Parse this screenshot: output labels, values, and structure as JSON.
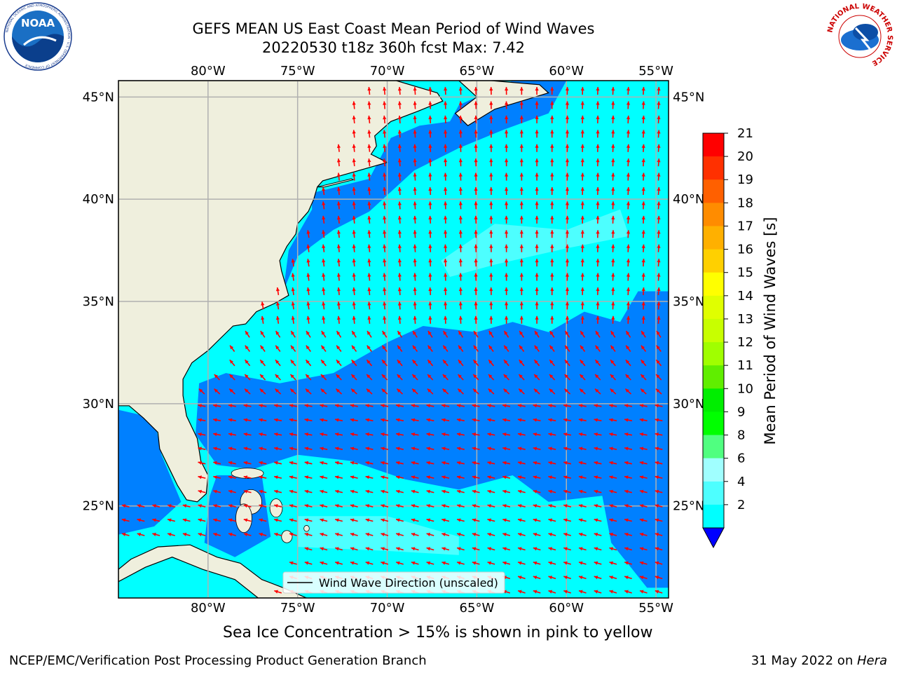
{
  "header": {
    "title_line1": "GEFS MEAN US East Coast Mean Period of Wind Waves",
    "title_line2": "20220530 t18z 360h fcst   Max: 7.42",
    "left_logo_text": "NOAA",
    "left_logo_ring": "NATIONAL OCEANIC AND ATMOSPHERIC ADMINISTRATION · U.S. DEPARTMENT OF COMMERCE",
    "right_logo_ring": "NATIONAL WEATHER SERVICE"
  },
  "map": {
    "lon_labels": [
      "80°W",
      "75°W",
      "70°W",
      "65°W",
      "60°W",
      "55°W"
    ],
    "lat_labels": [
      "45°N",
      "40°N",
      "35°N",
      "30°N",
      "25°N"
    ],
    "lon_values": [
      -80,
      -75,
      -70,
      -65,
      -60,
      -55
    ],
    "lat_values": [
      45,
      40,
      35,
      30,
      25
    ],
    "lon_range": [
      -85,
      -54.3
    ],
    "lat_range": [
      20.5,
      45.8
    ],
    "legend_label": "Wind Wave Direction (unscaled)",
    "colors": {
      "land": "#efefdd",
      "band_2_4": "#0080ff",
      "band_4_6": "#00ffff",
      "band_6_8": "#4dffff",
      "arrow": "#ff0000",
      "grid": "#b0b0b0"
    }
  },
  "colorbar": {
    "label": "Mean Period of Wind Waves [s]",
    "ticks": [
      "21",
      "20",
      "19",
      "18",
      "17",
      "16",
      "15",
      "14",
      "13",
      "12",
      "11",
      "10",
      "9",
      "8",
      "6",
      "4",
      "2"
    ],
    "colors": [
      "#ff0000",
      "#ff3000",
      "#ff6000",
      "#ff8c00",
      "#ffb000",
      "#ffd000",
      "#ffff00",
      "#e0ff00",
      "#c8ff00",
      "#a0ff00",
      "#60ee00",
      "#00ee00",
      "#00ff00",
      "#50ff80",
      "#a0ffff",
      "#4dffff",
      "#00ffff",
      "#0080ff"
    ],
    "under_color": "#0000ff"
  },
  "notes": {
    "sea_ice": "Sea Ice Concentration > 15% is shown in pink to yellow"
  },
  "footer": {
    "left": "NCEP/EMC/Verification Post Processing Product Generation Branch",
    "date": "31 May 2022 on ",
    "machine": "Hera"
  }
}
